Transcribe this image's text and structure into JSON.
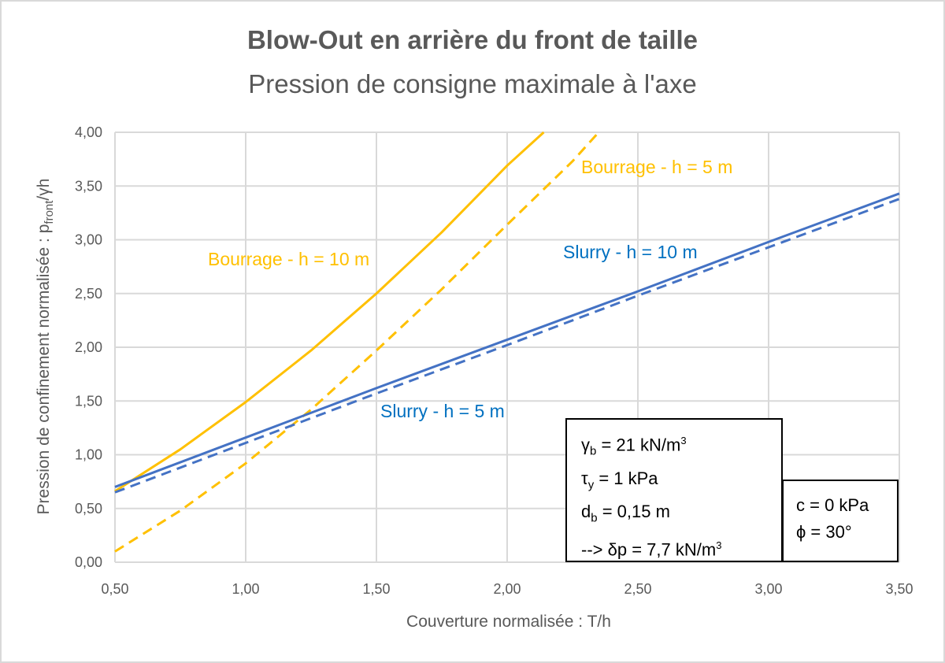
{
  "chart_data": {
    "type": "line",
    "title": "Blow-Out en arrière du front de taille",
    "subtitle": "Pression de consigne maximale à l'axe",
    "xlabel": "Couverture normalisée : T/h",
    "ylabel_main": "Pression de confinement normalisée : p",
    "ylabel_sub": "front",
    "ylabel_tail": "/γh",
    "xlim": [
      0.5,
      3.5
    ],
    "ylim": [
      0,
      4
    ],
    "x_ticks": [
      "0,50",
      "1,00",
      "1,50",
      "2,00",
      "2,50",
      "3,00",
      "3,50"
    ],
    "y_ticks": [
      "0,00",
      "0,50",
      "1,00",
      "1,50",
      "2,00",
      "2,50",
      "3,00",
      "3,50",
      "4,00"
    ],
    "grid": true,
    "series": [
      {
        "name": "Bourrage - h = 10 m",
        "color": "#ffc000",
        "dash": false,
        "x": [
          0.5,
          0.75,
          1.0,
          1.25,
          1.5,
          1.75,
          2.0,
          2.14
        ],
        "y": [
          0.66,
          1.05,
          1.49,
          1.97,
          2.5,
          3.07,
          3.69,
          4.0
        ]
      },
      {
        "name": "Bourrage - h = 5 m",
        "color": "#ffc000",
        "dash": true,
        "x": [
          0.5,
          0.75,
          1.0,
          1.25,
          1.5,
          1.75,
          2.0,
          2.25,
          2.35
        ],
        "y": [
          0.1,
          0.48,
          0.92,
          1.42,
          1.97,
          2.54,
          3.14,
          3.73,
          4.0
        ]
      },
      {
        "name": "Slurry - h = 10 m",
        "color": "#4472c4",
        "dash": false,
        "x": [
          0.5,
          1.0,
          1.5,
          2.0,
          2.5,
          3.0,
          3.5
        ],
        "y": [
          0.7,
          1.16,
          1.62,
          2.07,
          2.52,
          2.98,
          3.43
        ]
      },
      {
        "name": "Slurry - h = 5 m",
        "color": "#4472c4",
        "dash": true,
        "x": [
          0.5,
          1.0,
          1.5,
          2.0,
          2.5,
          3.0,
          3.5
        ],
        "y": [
          0.65,
          1.11,
          1.57,
          2.02,
          2.48,
          2.93,
          3.38
        ]
      }
    ],
    "labels": [
      {
        "text": "Bourrage - h = 10 m",
        "color": "#ffc000"
      },
      {
        "text": "Bourrage - h = 5 m",
        "color": "#ffc000"
      },
      {
        "text": "Slurry - h = 10 m",
        "color": "#0070c0"
      },
      {
        "text": "Slurry - h = 5 m",
        "color": "#0070c0"
      }
    ]
  },
  "params": {
    "gamma_sym": "γ",
    "gamma_sub": "b",
    "gamma_val": " = 21 kN/m",
    "gamma_sup": "3",
    "tau_sym": "τ",
    "tau_sub": "y",
    "tau_val": " = 1 kPa",
    "d_sym": "d",
    "d_sub": "b",
    "d_val": " = 0,15 m",
    "delta_text": "--> δp = 7,7 kN/m",
    "delta_sup": "3"
  },
  "soil": {
    "c": "c = 0 kPa",
    "phi": "ϕ = 30°"
  }
}
